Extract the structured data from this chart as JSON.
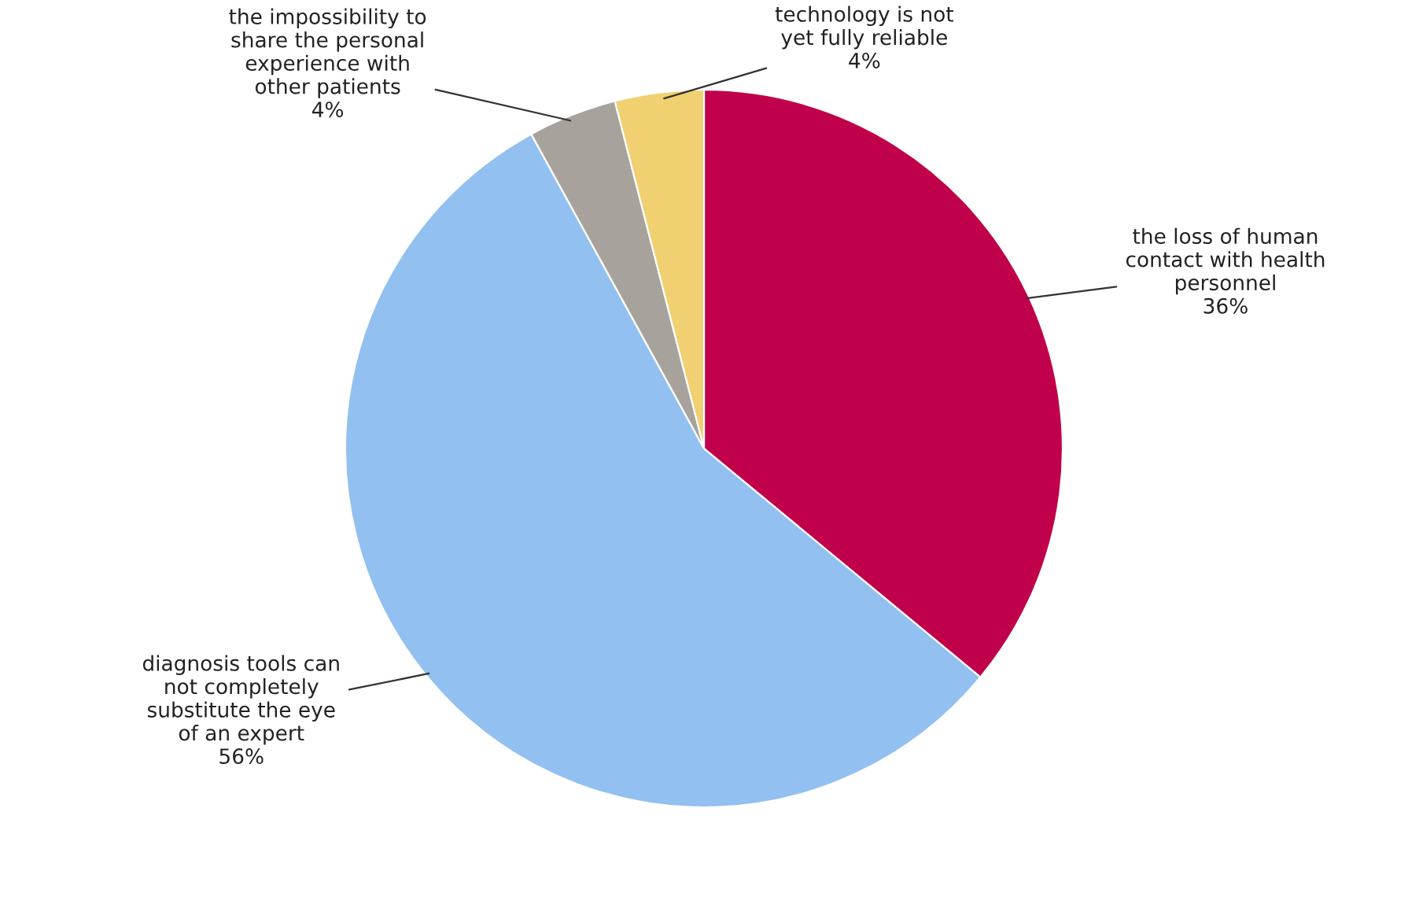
{
  "chart_data": {
    "type": "pie",
    "categories": [
      "the loss of human\ncontact with health\npersonnel",
      "diagnosis tools can\nnot completely\nsubstitute the eye\nof an expert",
      "the impossibility to\nshare the personal\nexperience with\nother patients",
      "technology is not\nyet fully reliable"
    ],
    "values": [
      36,
      56,
      4,
      4
    ],
    "value_labels": [
      "36%",
      "56%",
      "4%",
      "4%"
    ],
    "colors": [
      "#c0004a",
      "#92c0f0",
      "#a8a29c",
      "#f0d070"
    ],
    "legend": false
  }
}
